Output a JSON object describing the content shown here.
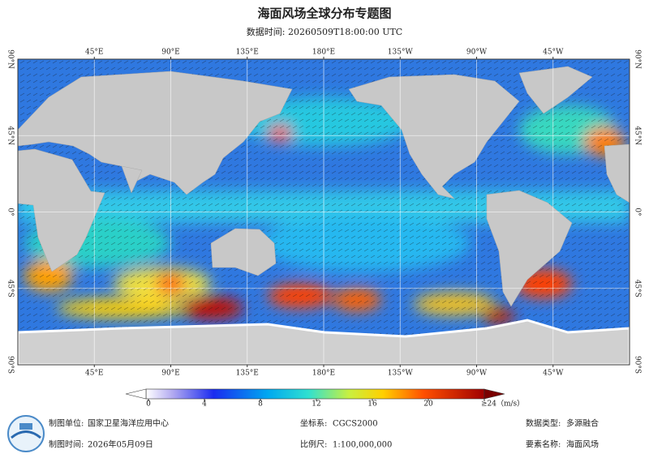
{
  "header": {
    "title": "海面风场全球分布专题图",
    "subtitle": "数据时间: 20260509T18:00:00 UTC"
  },
  "map": {
    "lonlim": [
      0,
      360
    ],
    "latlim": [
      -90,
      90
    ],
    "lon_ticks": [
      {
        "value": 45,
        "label": "45°E"
      },
      {
        "value": 90,
        "label": "90°E"
      },
      {
        "value": 135,
        "label": "135°E"
      },
      {
        "value": 180,
        "label": "180°E"
      },
      {
        "value": 225,
        "label": "135°W"
      },
      {
        "value": 270,
        "label": "90°W"
      },
      {
        "value": 315,
        "label": "45°W"
      }
    ],
    "lat_ticks": [
      {
        "value": 90,
        "label": "90°N"
      },
      {
        "value": 45,
        "label": "45°N"
      },
      {
        "value": 0,
        "label": "0°"
      },
      {
        "value": -45,
        "label": "45°S"
      },
      {
        "value": -90,
        "label": "90°S"
      }
    ]
  },
  "colorbar": {
    "range": [
      0,
      24
    ],
    "ticks": [
      0,
      4,
      8,
      12,
      16,
      20,
      {
        "value": 24,
        "label": "≥24（m/s）"
      }
    ]
  },
  "footer": {
    "unit_label": "制图单位:",
    "unit": "国家卫星海洋应用中心",
    "crs_label": "坐标系:",
    "crs": "CGCS2000",
    "dtype_label": "数据类型:",
    "dtype": "多源融合",
    "date_label": "制图时间:",
    "date": "2026年05月09日",
    "scale_label": "比例尺:",
    "scale": "1:100,000,000",
    "element_label": "要素名称:",
    "element": "海面风场"
  }
}
